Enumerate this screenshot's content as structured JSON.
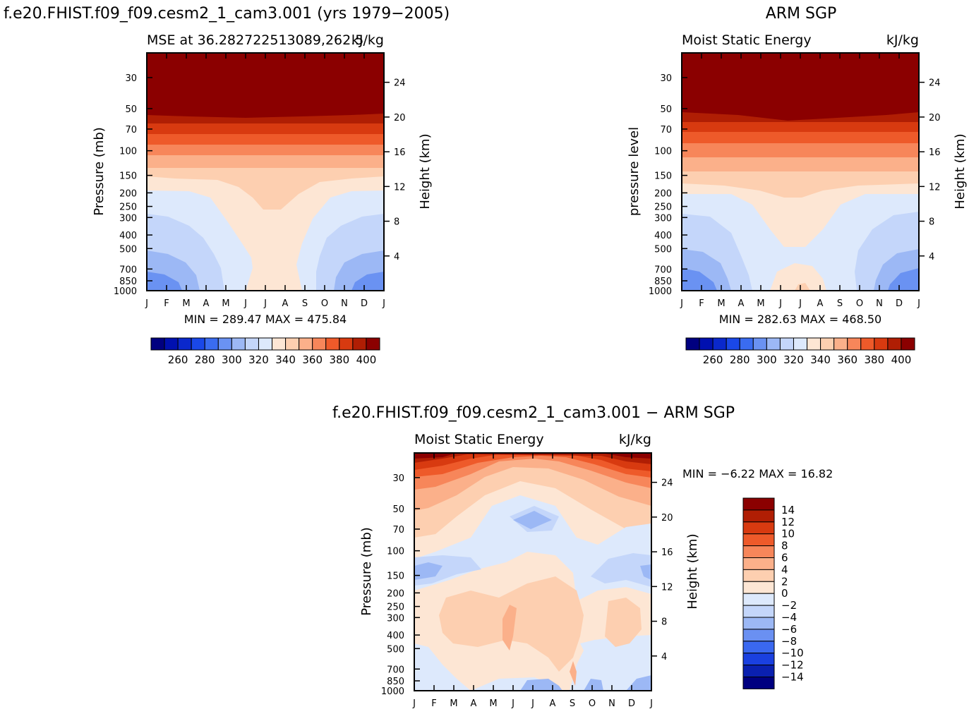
{
  "colors": {
    "scale": [
      "#000080",
      "#0010b0",
      "#0a28cc",
      "#1a48e8",
      "#3a6cf0",
      "#6a92f2",
      "#9cb8f5",
      "#c4d6fa",
      "#dde9fc",
      "#fde6d4",
      "#fdcfb0",
      "#fbb08a",
      "#f7865a",
      "#ee5a2a",
      "#d83a10",
      "#b01e04",
      "#8b0000"
    ],
    "diff": {
      "n14": "#000080",
      "n12": "#0a20b0",
      "n10": "#1a40e0",
      "n8": "#3a68f0",
      "n6": "#6a90f2",
      "n4": "#9cb8f5",
      "n2": "#c4d6fa",
      "n0": "#dde9fc",
      "p0": "#fde6d4",
      "p2": "#fdcfb0",
      "p4": "#fbb08a",
      "p6": "#f7865a",
      "p8": "#ee5a2a",
      "p10": "#d83a10",
      "p12": "#b01e04",
      "p14": "#8b0000"
    }
  },
  "figure": {
    "main_title": "f.e20.FHIST.f09_f09.cesm2_1_cam3.001 (yrs 1979−2005)",
    "obs_title": "ARM SGP",
    "diff_title": "f.e20.FHIST.f09_f09.cesm2_1_cam3.001  −  ARM SGP"
  },
  "chart_data": [
    {
      "type": "heatmap",
      "id": "model",
      "left_title": "MSE at 36.282722513089,262.5",
      "right_title": "kJ/kg",
      "ylabel": "Pressure (mb)",
      "y2label": "Height (km)",
      "x": [
        "J",
        "F",
        "M",
        "A",
        "M",
        "J",
        "J",
        "A",
        "S",
        "O",
        "N",
        "D",
        "J"
      ],
      "pressure_ticks": [
        30,
        50,
        70,
        100,
        150,
        200,
        250,
        300,
        400,
        500,
        700,
        850,
        1000
      ],
      "height_ticks": [
        4,
        8,
        12,
        16,
        20,
        24
      ],
      "yscale": "log",
      "ylim": [
        1000,
        20
      ],
      "stats": "MIN = 289.47  MAX = 475.84",
      "colorbar_ticks": [
        "260",
        "280",
        "300",
        "320",
        "340",
        "360",
        "380",
        "400"
      ],
      "colorbar_levels": [
        250,
        400
      ],
      "contours_upper_to_lower": [
        {
          "level": 400,
          "color": "#8b0000",
          "months_top_pressure": 20
        },
        {
          "level": 390,
          "color": "#b01e04",
          "base_pressure": 62
        },
        {
          "level": 380,
          "color": "#d83a10",
          "base_pressure": 75
        },
        {
          "level": 370,
          "color": "#ee5a2a",
          "base_pressure": 90
        },
        {
          "level": 360,
          "color": "#f7865a",
          "base_pressure": 120
        },
        {
          "level": 350,
          "color": "#fbb08a",
          "base_pressure": 165
        },
        {
          "level": 340,
          "color": "#fdcfb0",
          "base_pressure": 215
        }
      ]
    },
    {
      "type": "heatmap",
      "id": "obs",
      "left_title": "Moist Static Energy",
      "right_title": "kJ/kg",
      "ylabel": "pressure level",
      "y2label": "Height (km)",
      "x": [
        "J",
        "F",
        "M",
        "A",
        "M",
        "J",
        "J",
        "A",
        "S",
        "O",
        "N",
        "D",
        "J"
      ],
      "pressure_ticks": [
        30,
        50,
        70,
        100,
        150,
        200,
        250,
        300,
        400,
        500,
        700,
        850,
        1000
      ],
      "height_ticks": [
        4,
        8,
        12,
        16,
        20,
        24
      ],
      "yscale": "log",
      "ylim": [
        1000,
        20
      ],
      "stats": "MIN = 282.63  MAX = 468.50",
      "colorbar_ticks": [
        "260",
        "280",
        "300",
        "320",
        "340",
        "360",
        "380",
        "400"
      ],
      "colorbar_levels": [
        250,
        400
      ]
    },
    {
      "type": "heatmap",
      "id": "diff",
      "left_title": "Moist Static Energy",
      "right_title": "kJ/kg",
      "ylabel": "Pressure (mb)",
      "y2label": "Height (km)",
      "x": [
        "J",
        "F",
        "M",
        "A",
        "M",
        "J",
        "J",
        "A",
        "S",
        "O",
        "N",
        "D",
        "J"
      ],
      "pressure_ticks": [
        30,
        50,
        70,
        100,
        150,
        200,
        250,
        300,
        400,
        500,
        700,
        850,
        1000
      ],
      "height_ticks": [
        4,
        8,
        12,
        16,
        20,
        24
      ],
      "yscale": "log",
      "ylim": [
        1000,
        20
      ],
      "stats": "MIN =   −6.22  MAX =    16.82",
      "colorbar_ticks": [
        "14",
        "12",
        "10",
        "8",
        "6",
        "4",
        "2",
        "0",
        "−2",
        "−4",
        "−6",
        "−8",
        "−10",
        "−12",
        "−14"
      ],
      "colorbar_levels": [
        -16,
        16
      ]
    }
  ]
}
